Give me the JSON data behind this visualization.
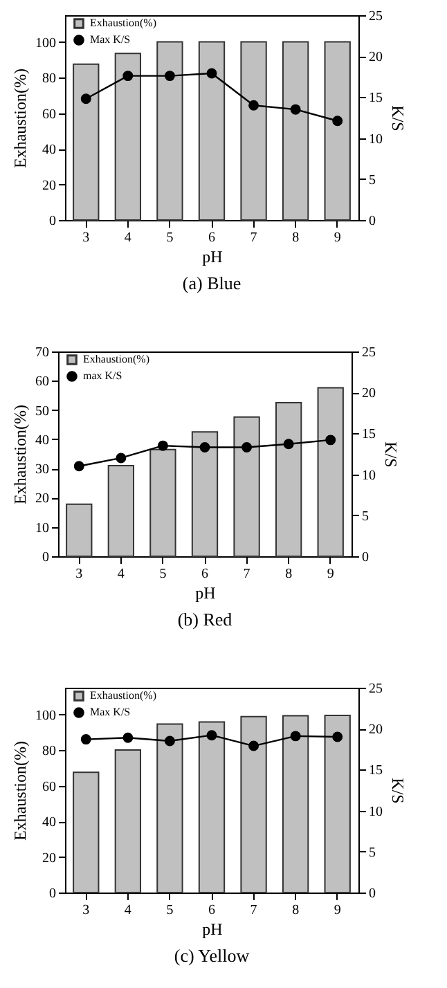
{
  "chart_data": [
    {
      "type": "bar",
      "title": "(a)  Blue",
      "xlabel": "pH",
      "ylabel": "Exhaustion(%)",
      "y2label": "K/S",
      "categories": [
        "3",
        "4",
        "5",
        "6",
        "7",
        "8",
        "9"
      ],
      "ylim": [
        0,
        115
      ],
      "yticks": [
        0,
        20,
        40,
        60,
        80,
        100
      ],
      "y2lim": [
        0,
        25
      ],
      "y2ticks": [
        0,
        5,
        10,
        15,
        20,
        25
      ],
      "legend": "top left",
      "marker": "circle",
      "line_style": "solid",
      "series": [
        {
          "name": "Exhaustion(%)",
          "color": "#c0c0c0",
          "values": [
            87.5,
            93.5,
            100,
            100,
            100,
            100,
            100
          ]
        },
        {
          "name": "Max K/S",
          "type": "line",
          "axis": "y2",
          "color": "#000000",
          "values": [
            14.8,
            17.6,
            17.6,
            17.9,
            14.0,
            13.5,
            12.1
          ]
        }
      ]
    },
    {
      "type": "bar",
      "title": "(b)  Red",
      "xlabel": "pH",
      "ylabel": "Exhaustion(%)",
      "y2label": "K/S",
      "categories": [
        "3",
        "4",
        "5",
        "6",
        "7",
        "8",
        "9"
      ],
      "ylim": [
        0,
        70
      ],
      "yticks": [
        0,
        10,
        20,
        30,
        40,
        50,
        60,
        70
      ],
      "y2lim": [
        0,
        25
      ],
      "y2ticks": [
        0,
        5,
        10,
        15,
        20,
        25
      ],
      "legend": "top left",
      "marker": "circle",
      "line_style": "solid",
      "series": [
        {
          "name": "Exhaustion(%)",
          "color": "#c0c0c0",
          "values": [
            17.8,
            31,
            36.5,
            42.5,
            47.6,
            52.5,
            57.6
          ]
        },
        {
          "name": "max K/S",
          "type": "line",
          "axis": "y2",
          "color": "#000000",
          "values": [
            11.0,
            12.0,
            13.5,
            13.3,
            13.3,
            13.7,
            14.2
          ]
        }
      ]
    },
    {
      "type": "bar",
      "title": "(c)  Yellow",
      "xlabel": "pH",
      "ylabel": "Exhaustion(%)",
      "y2label": "K/S",
      "categories": [
        "3",
        "4",
        "5",
        "6",
        "7",
        "8",
        "9"
      ],
      "ylim": [
        0,
        115
      ],
      "yticks": [
        0,
        20,
        40,
        60,
        80,
        100
      ],
      "y2lim": [
        0,
        25
      ],
      "y2ticks": [
        0,
        5,
        10,
        15,
        20,
        25
      ],
      "legend": "top left",
      "marker": "circle",
      "line_style": "solid",
      "series": [
        {
          "name": "Exhaustion(%)",
          "color": "#c0c0c0",
          "values": [
            67.5,
            80,
            94.6,
            95.8,
            98.8,
            99.3,
            99.5
          ]
        },
        {
          "name": "Max K/S",
          "type": "line",
          "axis": "y2",
          "color": "#000000",
          "values": [
            18.7,
            18.9,
            18.5,
            19.2,
            17.9,
            19.1,
            19.0
          ]
        }
      ]
    }
  ]
}
